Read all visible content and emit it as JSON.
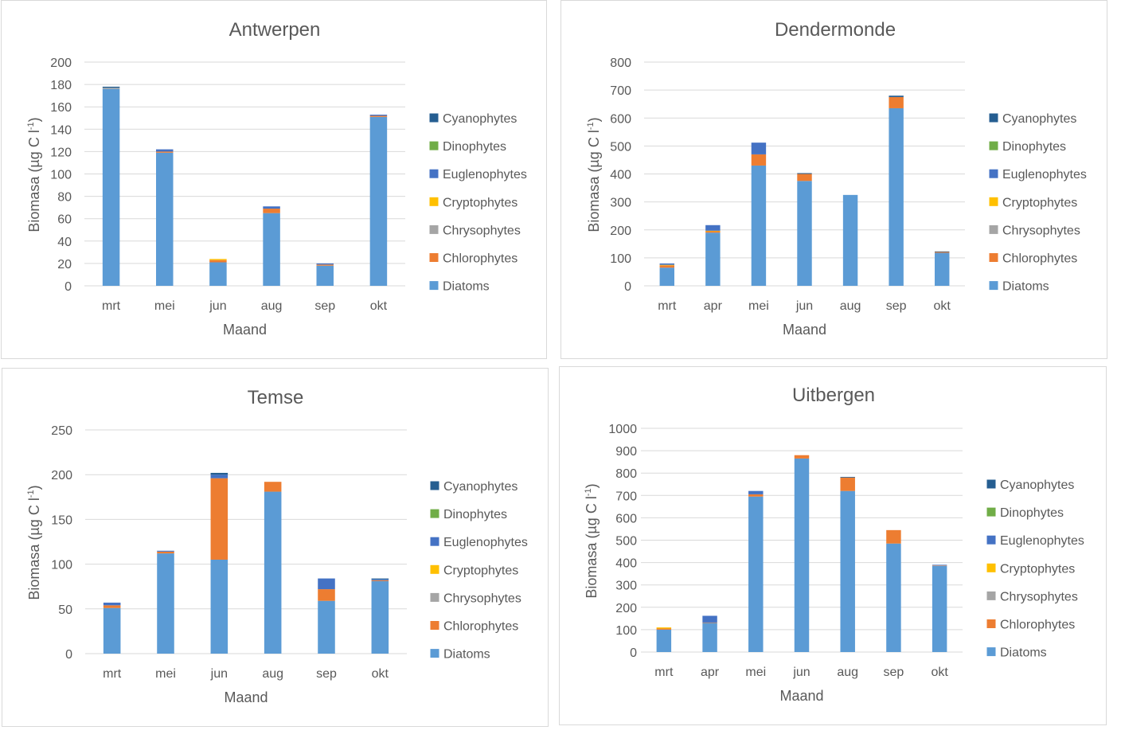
{
  "colors": {
    "Cyanophytes": "#255e91",
    "Dinophytes": "#70ad47",
    "Euglenophytes": "#4472c4",
    "Cryptophytes": "#ffc000",
    "Chrysophytes": "#a5a5a5",
    "Chlorophytes": "#ed7d31",
    "Diatoms": "#5b9bd5"
  },
  "legend_order": [
    "Cyanophytes",
    "Dinophytes",
    "Euglenophytes",
    "Cryptophytes",
    "Chrysophytes",
    "Chlorophytes",
    "Diatoms"
  ],
  "stack_order": [
    "Diatoms",
    "Chlorophytes",
    "Chrysophytes",
    "Cryptophytes",
    "Euglenophytes",
    "Dinophytes",
    "Cyanophytes"
  ],
  "chart_data": [
    {
      "type": "bar",
      "stacked": true,
      "title": "Antwerpen",
      "xlabel": "Maand",
      "ylabel": "Biomasa (µg C l-1)",
      "ylim": [
        0,
        200
      ],
      "yticks": [
        0,
        20,
        40,
        60,
        80,
        100,
        120,
        140,
        160,
        180,
        200
      ],
      "categories": [
        "mrt",
        "mei",
        "jun",
        "aug",
        "sep",
        "okt"
      ],
      "series": [
        {
          "name": "Diatoms",
          "values": [
            176,
            119,
            21,
            65,
            18,
            151
          ]
        },
        {
          "name": "Chlorophytes",
          "values": [
            0,
            1,
            2,
            4,
            1,
            1
          ]
        },
        {
          "name": "Chrysophytes",
          "values": [
            1,
            0,
            0,
            0,
            0,
            0
          ]
        },
        {
          "name": "Cryptophytes",
          "values": [
            0,
            0,
            1,
            0,
            0,
            0
          ]
        },
        {
          "name": "Euglenophytes",
          "values": [
            0,
            2,
            0,
            2,
            1,
            1
          ]
        },
        {
          "name": "Dinophytes",
          "values": [
            0,
            0,
            0,
            0,
            0,
            0
          ]
        },
        {
          "name": "Cyanophytes",
          "values": [
            1,
            0,
            0,
            0,
            0,
            0
          ]
        }
      ],
      "legend": "right",
      "grid": true
    },
    {
      "type": "bar",
      "stacked": true,
      "title": "Dendermonde",
      "xlabel": "Maand",
      "ylabel": "Biomasa (µg C l-1)",
      "ylim": [
        0,
        800
      ],
      "yticks": [
        0,
        100,
        200,
        300,
        400,
        500,
        600,
        700,
        800
      ],
      "categories": [
        "mrt",
        "apr",
        "mei",
        "jun",
        "aug",
        "sep",
        "okt"
      ],
      "series": [
        {
          "name": "Diatoms",
          "values": [
            65,
            190,
            430,
            375,
            325,
            635,
            118
          ]
        },
        {
          "name": "Chlorophytes",
          "values": [
            8,
            5,
            40,
            25,
            0,
            40,
            3
          ]
        },
        {
          "name": "Chrysophytes",
          "values": [
            0,
            0,
            0,
            0,
            0,
            0,
            0
          ]
        },
        {
          "name": "Cryptophytes",
          "values": [
            2,
            2,
            0,
            0,
            0,
            0,
            0
          ]
        },
        {
          "name": "Euglenophytes",
          "values": [
            5,
            20,
            42,
            0,
            0,
            0,
            0
          ]
        },
        {
          "name": "Dinophytes",
          "values": [
            0,
            0,
            0,
            0,
            0,
            0,
            0
          ]
        },
        {
          "name": "Cyanophytes",
          "values": [
            0,
            0,
            0,
            3,
            0,
            5,
            2
          ]
        }
      ],
      "legend": "right",
      "grid": true
    },
    {
      "type": "bar",
      "stacked": true,
      "title": "Temse",
      "xlabel": "Maand",
      "ylabel": "Biomasa (µg C l-1)",
      "ylim": [
        0,
        250
      ],
      "yticks": [
        0,
        50,
        100,
        150,
        200,
        250
      ],
      "categories": [
        "mrt",
        "mei",
        "jun",
        "aug",
        "sep",
        "okt"
      ],
      "series": [
        {
          "name": "Diatoms",
          "values": [
            51,
            112,
            105,
            181,
            59,
            81
          ]
        },
        {
          "name": "Chlorophytes",
          "values": [
            3,
            2,
            91,
            11,
            13,
            1
          ]
        },
        {
          "name": "Chrysophytes",
          "values": [
            0,
            0,
            0,
            0,
            0,
            0
          ]
        },
        {
          "name": "Cryptophytes",
          "values": [
            0,
            0,
            0,
            0,
            0,
            0
          ]
        },
        {
          "name": "Euglenophytes",
          "values": [
            3,
            1,
            4,
            0,
            12,
            1
          ]
        },
        {
          "name": "Dinophytes",
          "values": [
            0,
            0,
            0,
            0,
            0,
            0
          ]
        },
        {
          "name": "Cyanophytes",
          "values": [
            0,
            0,
            2,
            0,
            0,
            1
          ]
        }
      ],
      "legend": "right",
      "grid": true
    },
    {
      "type": "bar",
      "stacked": true,
      "title": "Uitbergen",
      "xlabel": "Maand",
      "ylabel": "Biomasa (µg C l-1)",
      "ylim": [
        0,
        1000
      ],
      "yticks": [
        0,
        100,
        200,
        300,
        400,
        500,
        600,
        700,
        800,
        900,
        1000
      ],
      "categories": [
        "mrt",
        "apr",
        "mei",
        "jun",
        "aug",
        "sep",
        "okt"
      ],
      "series": [
        {
          "name": "Diatoms",
          "values": [
            100,
            130,
            695,
            865,
            720,
            485,
            385
          ]
        },
        {
          "name": "Chlorophytes",
          "values": [
            5,
            2,
            10,
            15,
            60,
            60,
            2
          ]
        },
        {
          "name": "Chrysophytes",
          "values": [
            0,
            0,
            0,
            0,
            0,
            0,
            0
          ]
        },
        {
          "name": "Cryptophytes",
          "values": [
            5,
            0,
            0,
            0,
            0,
            0,
            0
          ]
        },
        {
          "name": "Euglenophytes",
          "values": [
            0,
            30,
            15,
            0,
            0,
            0,
            3
          ]
        },
        {
          "name": "Dinophytes",
          "values": [
            0,
            0,
            0,
            0,
            0,
            0,
            0
          ]
        },
        {
          "name": "Cyanophytes",
          "values": [
            0,
            0,
            0,
            0,
            3,
            0,
            0
          ]
        }
      ],
      "legend": "right",
      "grid": true
    }
  ]
}
